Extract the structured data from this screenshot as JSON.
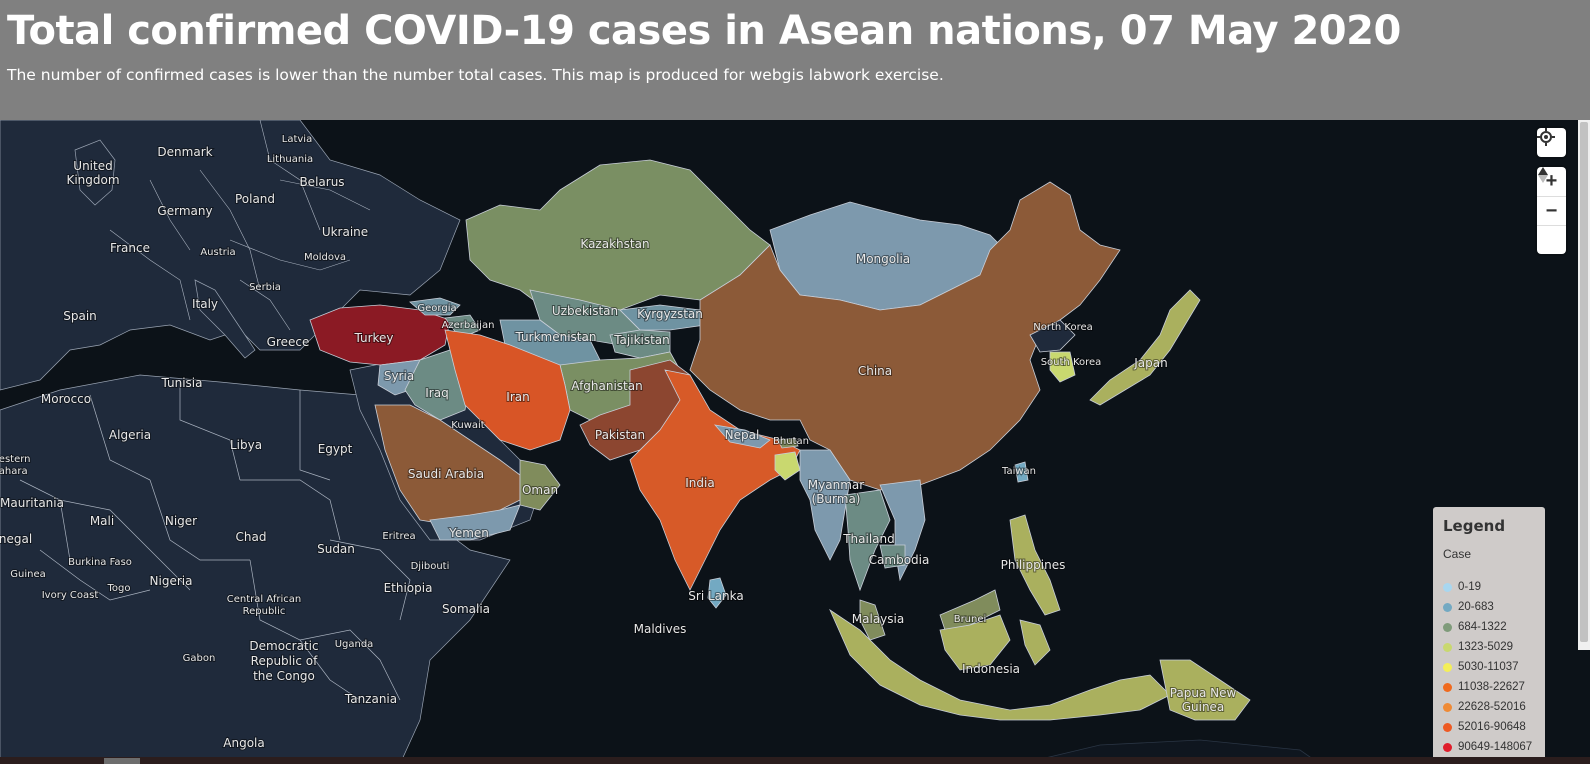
{
  "header": {
    "title": "Total confirmed COVID-19 cases in Asean nations, 07 May 2020",
    "subtitle": "The number of confirmed cases is lower than the number total cases. This map is produced for webgis labwork exercise."
  },
  "colors": {
    "header_bg": "#808080",
    "ocean": "#0c1218",
    "land_base": "#1f2a3b",
    "borders": "#c8ced8"
  },
  "controls": {
    "geolocate_icon": "geolocate-icon",
    "zoom_in_label": "+",
    "zoom_out_label": "−",
    "compass_label": "▲"
  },
  "legend": {
    "title": "Legend",
    "subtitle": "Case",
    "items": [
      {
        "label": "0-19",
        "color": "#a8d7f0"
      },
      {
        "label": "20-683",
        "color": "#73a9c2"
      },
      {
        "label": "684-1322",
        "color": "#7f9b7a"
      },
      {
        "label": "1323-5029",
        "color": "#c9d86f"
      },
      {
        "label": "5030-11037",
        "color": "#f4ef58"
      },
      {
        "label": "11038-22627",
        "color": "#f06a1e"
      },
      {
        "label": "22628-52016",
        "color": "#ef8a36"
      },
      {
        "label": "52016-90648",
        "color": "#ee5a23"
      },
      {
        "label": "90649-148067",
        "color": "#e01d2a"
      }
    ]
  },
  "map_labels": {
    "europe": [
      "Latvia",
      "Denmark",
      "United",
      "Kingdom",
      "Lithuania",
      "Belarus",
      "Poland",
      "Germany",
      "Ukraine",
      "France",
      "Austria",
      "Moldova",
      "Serbia",
      "Italy",
      "Spain",
      "Greece"
    ],
    "asia": [
      "Kazakhstan",
      "Mongolia",
      "Georgia",
      "Uzbekistan",
      "Kyrgyzstan",
      "Azerbaijan",
      "Turkey",
      "Turkmenistan",
      "Tajikistan",
      "North Korea",
      "Syria",
      "Iraq",
      "Iran",
      "Afghanistan",
      "China",
      "South Korea",
      "Japan",
      "Kuwait",
      "Pakistan",
      "Nepal",
      "Bhutan",
      "Taiwan",
      "Saudi Arabia",
      "India",
      "Myanmar",
      "(Burma)",
      "Oman",
      "Yemen",
      "Thailand",
      "Cambodia",
      "Philippines",
      "Sri Lanka",
      "Maldives",
      "Malaysia",
      "Brunei",
      "Indonesia",
      "Papua New",
      "Guinea"
    ],
    "africa": [
      "Tunisia",
      "Morocco",
      "Algeria",
      "Libya",
      "Egypt",
      "Western",
      "Sahara",
      "Mauritania",
      "Mali",
      "Niger",
      "Chad",
      "Sudan",
      "Eritrea",
      "Djibouti",
      "Senegal",
      "Burkina Faso",
      "Guinea",
      "Nigeria",
      "Ethiopia",
      "Ivory Coast",
      "Togo",
      "Central African",
      "Republic",
      "Somalia",
      "Gabon",
      "Uganda",
      "Democratic",
      "Republic of",
      "the Congo",
      "Tanzania",
      "Angola"
    ]
  }
}
